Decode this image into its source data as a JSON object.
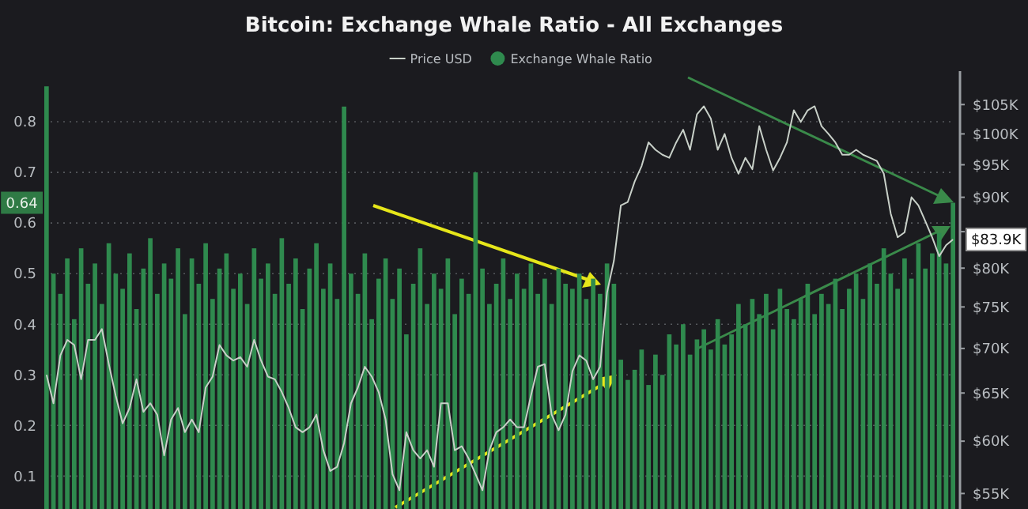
{
  "chart_data": {
    "type": "bar",
    "title": "Bitcoin: Exchange Whale Ratio - All Exchanges",
    "legend": "top",
    "grid": "y",
    "categories": [
      null,
      null,
      null,
      null,
      null,
      null,
      null,
      null,
      null,
      null,
      null,
      null,
      null,
      null,
      null,
      null,
      null,
      null,
      null,
      null,
      null,
      null,
      null,
      null,
      null,
      null,
      null,
      null,
      null,
      null,
      null,
      null,
      null,
      null,
      null,
      null,
      null,
      null,
      null,
      null,
      null,
      null,
      null,
      null,
      null,
      null,
      null,
      null,
      null,
      null,
      null,
      null,
      null,
      null,
      null,
      null,
      null,
      null,
      null,
      null,
      null,
      null,
      null,
      null,
      null,
      null,
      null,
      null,
      null,
      null,
      null,
      null,
      null,
      null,
      null,
      null,
      null,
      null,
      null,
      null,
      null,
      null,
      null,
      null,
      null,
      null,
      null,
      null,
      null,
      null,
      null,
      null,
      null,
      null,
      null,
      null,
      null,
      null,
      null,
      null,
      null,
      null,
      null,
      null,
      null,
      null,
      null,
      null,
      null,
      null,
      null,
      null,
      null,
      null,
      null,
      null,
      null,
      null,
      null,
      null,
      null,
      null,
      null,
      null,
      null,
      null,
      null,
      null,
      null,
      null,
      null,
      null
    ],
    "ylim": [
      0.035,
      0.9
    ],
    "yticks": [
      0.1,
      0.2,
      0.3,
      0.4,
      0.5,
      0.6,
      0.7,
      0.8
    ],
    "log": "y2",
    "y2lim": [
      53600,
      111000
    ],
    "y2ticks": [
      {
        "value": 55000,
        "label": "$55K"
      },
      {
        "value": 60000,
        "label": "$60K"
      },
      {
        "value": 65000,
        "label": "$65K"
      },
      {
        "value": 70000,
        "label": "$70K"
      },
      {
        "value": 75000,
        "label": "$75K"
      },
      {
        "value": 80000,
        "label": "$80K"
      },
      {
        "value": 85000,
        "label": null
      },
      {
        "value": 90000,
        "label": "$90K"
      },
      {
        "value": 95000,
        "label": "$95K"
      },
      {
        "value": 100000,
        "label": "$100K"
      },
      {
        "value": 105000,
        "label": "$105K"
      }
    ],
    "annotations": [
      "0.64",
      "$83.9K"
    ],
    "series": [
      {
        "name": "Exchange Whale Ratio",
        "color": "#2f8a4e",
        "values": [
          0.87,
          0.5,
          0.46,
          0.53,
          0.41,
          0.55,
          0.48,
          0.52,
          0.44,
          0.56,
          0.5,
          0.47,
          0.54,
          0.43,
          0.51,
          0.57,
          0.46,
          0.52,
          0.49,
          0.55,
          0.42,
          0.53,
          0.48,
          0.56,
          0.45,
          0.51,
          0.54,
          0.47,
          0.5,
          0.44,
          0.55,
          0.49,
          0.52,
          0.46,
          0.57,
          0.48,
          0.53,
          0.43,
          0.51,
          0.56,
          0.47,
          0.52,
          0.45,
          0.83,
          0.5,
          0.46,
          0.54,
          0.41,
          0.49,
          0.53,
          0.45,
          0.51,
          0.38,
          0.48,
          0.55,
          0.44,
          0.5,
          0.47,
          0.53,
          0.42,
          0.49,
          0.46,
          0.7,
          0.51,
          0.44,
          0.48,
          0.53,
          0.45,
          0.5,
          0.47,
          0.52,
          0.46,
          0.49,
          0.44,
          0.51,
          0.48,
          0.47,
          0.5,
          0.45,
          0.49,
          0.46,
          0.52,
          0.48,
          0.33,
          0.29,
          0.31,
          0.35,
          0.28,
          0.34,
          0.3,
          0.38,
          0.36,
          0.4,
          0.34,
          0.37,
          0.39,
          0.35,
          0.41,
          0.36,
          0.38,
          0.44,
          0.4,
          0.45,
          0.42,
          0.46,
          0.39,
          0.47,
          0.43,
          0.41,
          0.45,
          0.48,
          0.42,
          0.46,
          0.44,
          0.49,
          0.43,
          0.47,
          0.5,
          0.45,
          0.52,
          0.48,
          0.55,
          0.5,
          0.47,
          0.53,
          0.49,
          0.56,
          0.51,
          0.54,
          0.58,
          0.52,
          0.64
        ]
      },
      {
        "name": "Price USD",
        "type": "line",
        "axis": "y2",
        "color": "#c8d0c8",
        "values": [
          67000,
          63900,
          69200,
          71000,
          70400,
          66500,
          71000,
          71000,
          72300,
          68200,
          64700,
          61800,
          63400,
          66500,
          63000,
          63900,
          62700,
          58600,
          62200,
          63400,
          60900,
          62200,
          60900,
          65600,
          66800,
          70400,
          69200,
          68600,
          69000,
          67900,
          71000,
          68600,
          66800,
          66500,
          65100,
          63400,
          61400,
          60900,
          61400,
          62700,
          59100,
          57100,
          57500,
          59800,
          63900,
          65600,
          67900,
          66800,
          65100,
          62200,
          56800,
          55300,
          60900,
          59100,
          58300,
          59100,
          57500,
          63900,
          63900,
          59100,
          59500,
          58300,
          56800,
          55300,
          59100,
          60900,
          61400,
          62200,
          61400,
          61400,
          64700,
          67900,
          68200,
          62700,
          61100,
          62700,
          67400,
          69200,
          68600,
          66500,
          67900,
          76800,
          81000,
          88800,
          89300,
          92400,
          94800,
          98600,
          97400,
          96600,
          96100,
          98600,
          100700,
          97400,
          103300,
          104700,
          102600,
          97400,
          100000,
          96100,
          93600,
          96100,
          94300,
          101300,
          97400,
          94100,
          96100,
          98600,
          104000,
          102000,
          104000,
          104700,
          101300,
          100000,
          98600,
          96600,
          96600,
          97400,
          96600,
          96100,
          95600,
          93600,
          87600,
          84200,
          84900,
          90000,
          88800,
          86500,
          84200,
          81600,
          83100,
          83900
        ]
      }
    ]
  }
}
